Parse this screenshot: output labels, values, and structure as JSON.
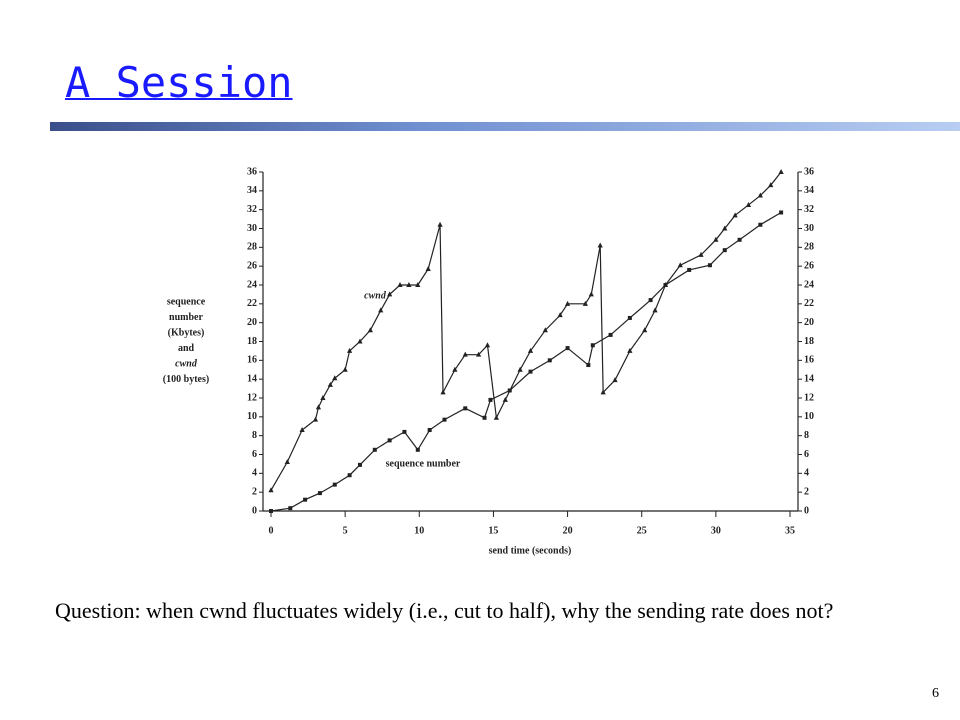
{
  "slide": {
    "title": "A Session",
    "question": "Question: when cwnd fluctuates widely (i.e., cut to half), why the sending rate does not?",
    "page_number": "6"
  },
  "chart_data": {
    "type": "line",
    "xlabel": "send time (seconds)",
    "ylabel_lines": [
      "sequence",
      "number",
      "(Kbytes)",
      "and",
      "cwnd",
      "(100 bytes)"
    ],
    "xlim": [
      0,
      35
    ],
    "xticks": [
      0,
      5,
      10,
      15,
      20,
      25,
      30,
      35
    ],
    "ylim": [
      0,
      36
    ],
    "yticks": [
      0,
      2,
      4,
      6,
      8,
      10,
      12,
      14,
      16,
      18,
      20,
      22,
      24,
      26,
      28,
      30,
      32,
      34,
      36
    ],
    "grid": false,
    "series": [
      {
        "name": "cwnd",
        "color": "#222222",
        "marker": "triangle",
        "x": [
          0,
          1.1,
          2.1,
          3.0,
          3.2,
          3.5,
          4.0,
          4.3,
          5.0,
          5.3,
          6.0,
          6.7,
          7.4,
          8.0,
          8.7,
          9.3,
          9.9,
          10.6,
          11.4,
          11.6,
          12.4,
          13.1,
          14.0,
          14.6,
          15.2,
          15.8,
          16.8,
          17.5,
          18.5,
          19.5,
          20.0,
          21.2,
          21.6,
          22.2,
          22.4,
          23.2,
          24.2,
          25.2,
          25.9,
          26.6,
          27.6,
          29.0,
          30.0,
          30.6,
          31.3,
          32.2,
          33.0,
          33.7,
          34.4
        ],
        "values": [
          2.2,
          5.2,
          8.6,
          9.7,
          11,
          12,
          13.4,
          14.1,
          15,
          17,
          18,
          19.2,
          21.3,
          23,
          24,
          24,
          24,
          25.7,
          30.4,
          12.6,
          15,
          16.6,
          16.6,
          17.6,
          9.9,
          11.8,
          15,
          17,
          19.2,
          20.8,
          22,
          22,
          23,
          28.2,
          12.6,
          13.9,
          17,
          19.2,
          21.3,
          24,
          26.1,
          27.2,
          28.8,
          30,
          31.4,
          32.5,
          33.5,
          34.6,
          36
        ]
      },
      {
        "name": "sequence number",
        "color": "#222222",
        "marker": "square",
        "x": [
          0,
          1.3,
          2.3,
          3.3,
          4.3,
          5.3,
          6.0,
          7.0,
          8.0,
          9.0,
          9.9,
          10.7,
          11.7,
          13.1,
          14.4,
          14.8,
          16.1,
          17.5,
          18.8,
          20.0,
          21.4,
          21.7,
          22.9,
          24.2,
          25.6,
          26.6,
          28.2,
          29.6,
          30.6,
          31.6,
          33.0,
          34.4
        ],
        "values": [
          0,
          0.3,
          1.2,
          1.9,
          2.8,
          3.8,
          4.9,
          6.5,
          7.5,
          8.4,
          6.5,
          8.6,
          9.7,
          10.9,
          9.9,
          11.8,
          12.8,
          14.8,
          16,
          17.3,
          15.5,
          17.6,
          18.7,
          20.5,
          22.4,
          24,
          25.6,
          26.1,
          27.7,
          28.8,
          30.4,
          31.7
        ]
      }
    ]
  }
}
